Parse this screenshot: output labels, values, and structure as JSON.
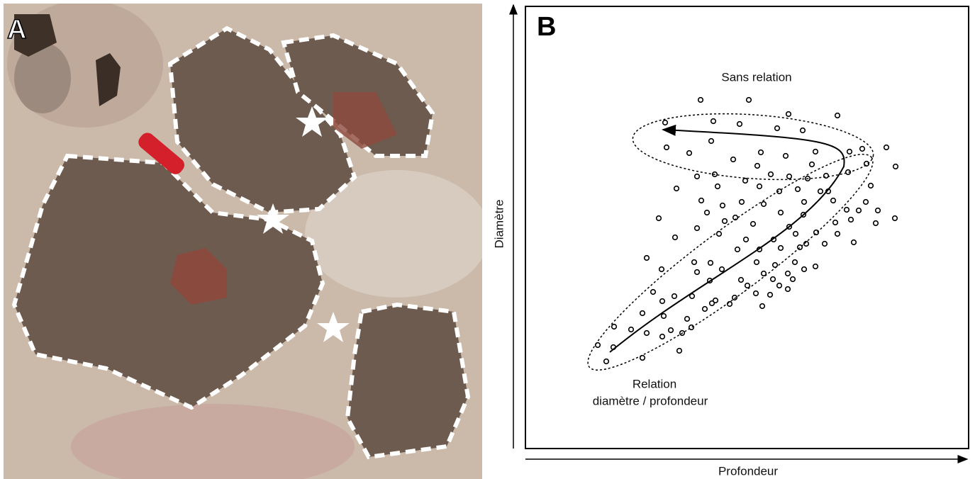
{
  "panel_a": {
    "label": "A"
  },
  "panel_b": {
    "label": "B",
    "y_axis_label": "Diamètre",
    "x_axis_label": "Profondeur",
    "annotations": {
      "upper": "Sans relation",
      "lower_line1": "Relation",
      "lower_line2": "diamètre / profondeur"
    }
  }
}
